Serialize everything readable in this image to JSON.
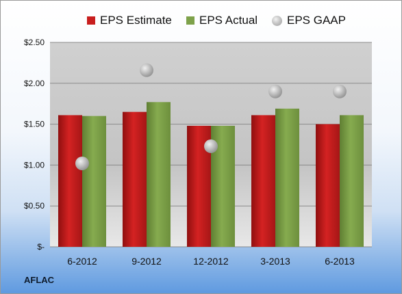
{
  "brand": "AFLAC",
  "colors": {
    "estimate": "#c81e1e",
    "actual": "#7ea24a",
    "gaap": "#b8b8b8",
    "plot_background": "#c8c8c8"
  },
  "chart_data": {
    "type": "bar",
    "categories": [
      "6-2012",
      "9-2012",
      "12-2012",
      "3-2013",
      "6-2013"
    ],
    "series": [
      {
        "name": "EPS Estimate",
        "type": "bar",
        "values": [
          1.61,
          1.65,
          1.48,
          1.61,
          1.5
        ]
      },
      {
        "name": "EPS Actual",
        "type": "bar",
        "values": [
          1.6,
          1.77,
          1.48,
          1.69,
          1.61
        ]
      },
      {
        "name": "EPS GAAP",
        "type": "scatter",
        "values": [
          1.02,
          2.16,
          1.23,
          1.9,
          1.9
        ]
      }
    ],
    "y_ticks": [
      "$-",
      "$0.50",
      "$1.00",
      "$1.50",
      "$2.00",
      "$2.50"
    ],
    "ylim": [
      0,
      2.5
    ],
    "grid": true,
    "legend_position": "top"
  }
}
